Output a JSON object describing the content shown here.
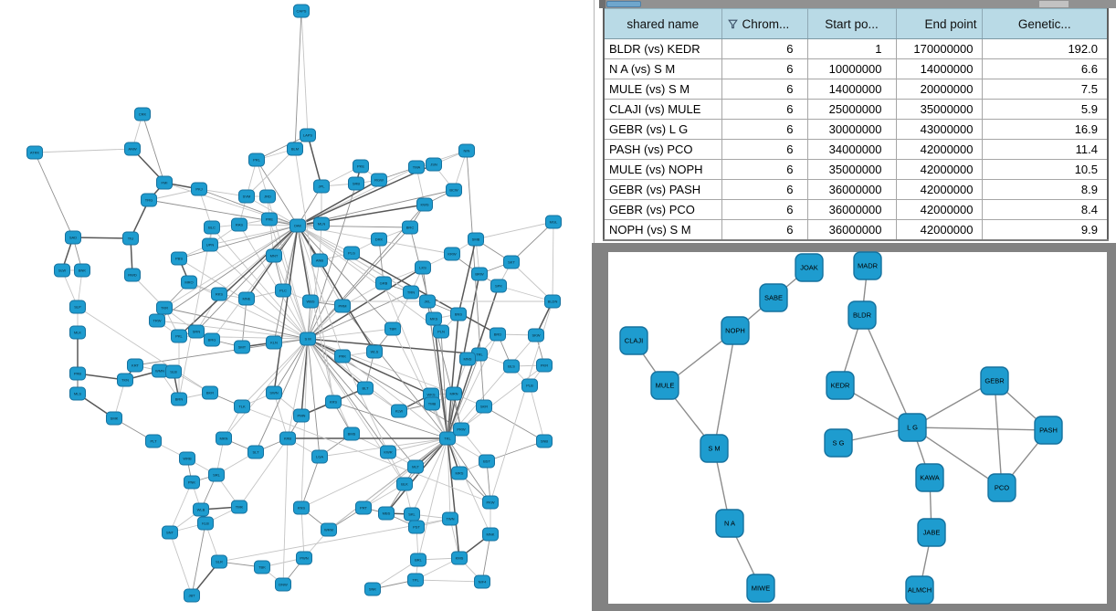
{
  "colors": {
    "node_fill": "#1e9ccf",
    "node_stroke": "#15719e",
    "node_label": "#0a2430",
    "edge_light": "#c4c4c4",
    "edge_mid": "#8f8f8f",
    "edge_dark": "#575757",
    "detail_edge": "#8c8c8c",
    "table_header_bg": "#b9dae6",
    "panel_gray": "#828282",
    "scrollbar_thumb": "#6fa6cc"
  },
  "table": {
    "columns": [
      {
        "label": "shared name",
        "align": "center",
        "filter": false
      },
      {
        "label": "Chrom...",
        "align": "left",
        "filter": true
      },
      {
        "label": "Start po...",
        "align": "center",
        "filter": false
      },
      {
        "label": "End point",
        "align": "right",
        "filter": false
      },
      {
        "label": "Genetic...",
        "align": "center",
        "filter": false
      }
    ],
    "rows": [
      [
        "BLDR (vs) KEDR",
        "6",
        "1",
        "170000000",
        "192.0"
      ],
      [
        "N A (vs) S M",
        "6",
        "10000000",
        "14000000",
        "6.6"
      ],
      [
        "MULE (vs) S M",
        "6",
        "14000000",
        "20000000",
        "7.5"
      ],
      [
        "CLAJI (vs) MULE",
        "6",
        "25000000",
        "35000000",
        "5.9"
      ],
      [
        "GEBR (vs) L G",
        "6",
        "30000000",
        "43000000",
        "16.9"
      ],
      [
        "PASH (vs) PCO",
        "6",
        "34000000",
        "42000000",
        "11.4"
      ],
      [
        "MULE (vs) NOPH",
        "6",
        "35000000",
        "42000000",
        "10.5"
      ],
      [
        "GEBR (vs) PASH",
        "6",
        "36000000",
        "42000000",
        "8.9"
      ],
      [
        "GEBR (vs) PCO",
        "6",
        "36000000",
        "42000000",
        "8.4"
      ],
      [
        "NOPH (vs) S M",
        "6",
        "36000000",
        "42000000",
        "9.9"
      ]
    ]
  },
  "chart_data": [
    {
      "type": "network",
      "name": "overview-network",
      "nodes": [
        [
          "CAPS",
          330,
          12
        ],
        [
          "CRK",
          156,
          125
        ],
        [
          "LAPS",
          337,
          148
        ],
        [
          "ANW",
          145,
          163
        ],
        [
          "BLM",
          323,
          163
        ],
        [
          "ATRK",
          38,
          167
        ],
        [
          "NIN",
          511,
          165
        ],
        [
          "PRL",
          281,
          175
        ],
        [
          "TMA",
          456,
          183
        ],
        [
          "JSN",
          475,
          180
        ],
        [
          "PKE",
          395,
          182
        ],
        [
          "FMI",
          180,
          200
        ],
        [
          "RGW",
          415,
          197
        ],
        [
          "SRB",
          390,
          201
        ],
        [
          "JPL",
          352,
          204
        ],
        [
          "PKJ",
          218,
          207
        ],
        [
          "BCW",
          497,
          208
        ],
        [
          "TRG",
          163,
          219
        ],
        [
          "SVM",
          270,
          215
        ],
        [
          "JRD",
          293,
          215
        ],
        [
          "KWS",
          465,
          224
        ],
        [
          "MGL",
          606,
          243
        ],
        [
          "BLC",
          232,
          249
        ],
        [
          "RAS",
          262,
          246
        ],
        [
          "PRE",
          295,
          240
        ],
        [
          "OAK",
          326,
          247
        ],
        [
          "MLN",
          352,
          245
        ],
        [
          "BRC",
          449,
          249
        ],
        [
          "SAD",
          80,
          260
        ],
        [
          "TIU",
          143,
          261
        ],
        [
          "UPN",
          230,
          268
        ],
        [
          "DRK",
          415,
          262
        ],
        [
          "SMB",
          521,
          262
        ],
        [
          "PLG",
          385,
          277
        ],
        [
          "MNT",
          300,
          280
        ],
        [
          "KRW",
          495,
          278
        ],
        [
          "PBS",
          196,
          283
        ],
        [
          "SLW",
          68,
          296
        ],
        [
          "BNK",
          90,
          296
        ],
        [
          "RWD",
          145,
          301
        ],
        [
          "ANB",
          350,
          285
        ],
        [
          "LKS",
          463,
          293
        ],
        [
          "BRW",
          525,
          300
        ],
        [
          "SKT",
          560,
          287
        ],
        [
          "MRO",
          207,
          309
        ],
        [
          "PLC",
          310,
          318
        ],
        [
          "GRB",
          420,
          310
        ],
        [
          "TRN",
          450,
          320
        ],
        [
          "SPK",
          546,
          313
        ],
        [
          "BLDN",
          605,
          330
        ],
        [
          "RKS",
          240,
          322
        ],
        [
          "MNE",
          270,
          327
        ],
        [
          "SLP",
          85,
          336
        ],
        [
          "TKR",
          180,
          337
        ],
        [
          "WBS",
          340,
          330
        ],
        [
          "PRM",
          375,
          335
        ],
        [
          "JKL",
          468,
          330
        ],
        [
          "BNS",
          502,
          344
        ],
        [
          "TRW",
          172,
          351
        ],
        [
          "MLK",
          85,
          364
        ],
        [
          "SRN",
          215,
          363
        ],
        [
          "PKL",
          196,
          368
        ],
        [
          "BRG",
          232,
          372
        ],
        [
          "SMT",
          265,
          380
        ],
        [
          "KLN",
          300,
          375
        ],
        [
          "S M",
          337,
          371
        ],
        [
          "PRK",
          375,
          390
        ],
        [
          "WLS",
          410,
          385
        ],
        [
          "TBR",
          430,
          360
        ],
        [
          "MKS",
          475,
          349
        ],
        [
          "PLN",
          483,
          363
        ],
        [
          "BRD",
          545,
          366
        ],
        [
          "SKW",
          587,
          367
        ],
        [
          "TRL",
          525,
          388
        ],
        [
          "MNS",
          512,
          393
        ],
        [
          "PKR",
          596,
          400
        ],
        [
          "BLS",
          560,
          401
        ],
        [
          "KRT",
          148,
          400
        ],
        [
          "WMN",
          175,
          406
        ],
        [
          "SLB",
          190,
          407
        ],
        [
          "TKN",
          137,
          416
        ],
        [
          "PRB",
          85,
          409
        ],
        [
          "MLS",
          85,
          431
        ],
        [
          "BKR",
          230,
          430
        ],
        [
          "SWN",
          300,
          430
        ],
        [
          "TLK",
          265,
          445
        ],
        [
          "PMN",
          330,
          455
        ],
        [
          "KRS",
          365,
          440
        ],
        [
          "BLT",
          400,
          425
        ],
        [
          "WKS",
          472,
          432
        ],
        [
          "MRN",
          497,
          431
        ],
        [
          "PLB",
          580,
          422
        ],
        [
          "SKR",
          530,
          445
        ],
        [
          "TMB",
          473,
          442
        ],
        [
          "KLW",
          437,
          450
        ],
        [
          "BRN",
          196,
          437
        ],
        [
          "SMK",
          125,
          458
        ],
        [
          "PLT",
          168,
          483
        ],
        [
          "WRB",
          205,
          502
        ],
        [
          "MKN",
          245,
          480
        ],
        [
          "SLT",
          280,
          495
        ],
        [
          "KRB",
          315,
          480
        ],
        [
          "LGA",
          350,
          500
        ],
        [
          "BMS",
          385,
          475
        ],
        [
          "TKL",
          490,
          480
        ],
        [
          "PRW",
          505,
          470
        ],
        [
          "SNB",
          596,
          483
        ],
        [
          "MLT",
          455,
          511
        ],
        [
          "KWR",
          425,
          495
        ],
        [
          "BST",
          533,
          505
        ],
        [
          "PNK",
          210,
          528
        ],
        [
          "SRL",
          237,
          520
        ],
        [
          "TMK",
          262,
          555
        ],
        [
          "WLB",
          220,
          558
        ],
        [
          "KNS",
          330,
          556
        ],
        [
          "PRT",
          398,
          556
        ],
        [
          "MBS",
          423,
          562
        ],
        [
          "SKL",
          451,
          563
        ],
        [
          "TWN",
          493,
          568
        ],
        [
          "BLK",
          443,
          530
        ],
        [
          "MRS",
          503,
          518
        ],
        [
          "PKW",
          537,
          550
        ],
        [
          "SNT",
          186,
          583
        ],
        [
          "KLB",
          225,
          573
        ],
        [
          "WRM",
          360,
          580
        ],
        [
          "PST",
          456,
          577
        ],
        [
          "MNK",
          537,
          585
        ],
        [
          "SLR",
          240,
          615
        ],
        [
          "TBK",
          287,
          621
        ],
        [
          "PWN",
          333,
          611
        ],
        [
          "KMS",
          503,
          611
        ],
        [
          "BRL",
          458,
          613
        ],
        [
          "SNK",
          408,
          645
        ],
        [
          "TPL",
          455,
          635
        ],
        [
          "NIF4",
          528,
          637
        ],
        [
          "JBT",
          210,
          652
        ],
        [
          "DNW",
          310,
          640
        ]
      ],
      "hubs": [
        "S M",
        "TKL",
        "OAK"
      ]
    },
    {
      "type": "network",
      "name": "detail-network",
      "nodes": [
        [
          "JOAK",
          886,
          293
        ],
        [
          "SABE",
          847,
          326
        ],
        [
          "NOPH",
          805,
          362
        ],
        [
          "CLAJI",
          694,
          373
        ],
        [
          "MULE",
          728,
          422
        ],
        [
          "S M",
          782,
          491
        ],
        [
          "N A",
          799,
          573
        ],
        [
          "MIWE",
          833,
          644
        ],
        [
          "MADR",
          950,
          291
        ],
        [
          "BLDR",
          944,
          345
        ],
        [
          "KEDR",
          920,
          422
        ],
        [
          "S G",
          918,
          485
        ],
        [
          "L G",
          999,
          468
        ],
        [
          "KAWA",
          1018,
          523
        ],
        [
          "JABE",
          1020,
          583
        ],
        [
          "ALMCH",
          1007,
          646
        ],
        [
          "GEBR",
          1089,
          417
        ],
        [
          "PASH",
          1148,
          471
        ],
        [
          "PCO",
          1097,
          534
        ]
      ],
      "edges": [
        [
          "JOAK",
          "SABE"
        ],
        [
          "SABE",
          "NOPH"
        ],
        [
          "NOPH",
          "MULE"
        ],
        [
          "NOPH",
          "S M"
        ],
        [
          "CLAJI",
          "MULE"
        ],
        [
          "MULE",
          "S M"
        ],
        [
          "S M",
          "N A"
        ],
        [
          "N A",
          "MIWE"
        ],
        [
          "MADR",
          "BLDR"
        ],
        [
          "BLDR",
          "KEDR"
        ],
        [
          "BLDR",
          "L G"
        ],
        [
          "KEDR",
          "L G"
        ],
        [
          "S G",
          "L G"
        ],
        [
          "L G",
          "GEBR"
        ],
        [
          "L G",
          "PASH"
        ],
        [
          "L G",
          "PCO"
        ],
        [
          "L G",
          "KAWA"
        ],
        [
          "GEBR",
          "PASH"
        ],
        [
          "GEBR",
          "PCO"
        ],
        [
          "PASH",
          "PCO"
        ],
        [
          "KAWA",
          "JABE"
        ],
        [
          "JABE",
          "ALMCH"
        ]
      ]
    }
  ]
}
